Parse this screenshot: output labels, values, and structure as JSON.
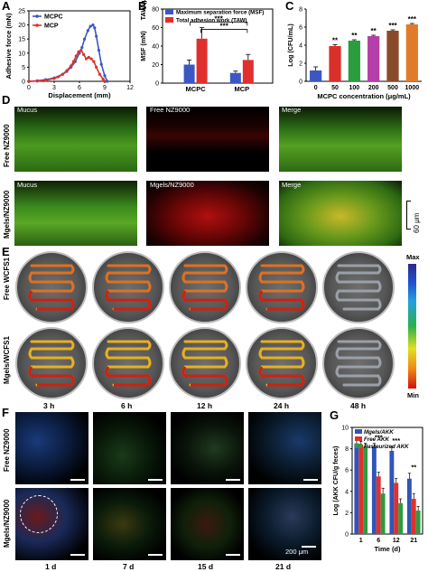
{
  "panels": {
    "A": "A",
    "B": "B",
    "C": "C",
    "D": "D",
    "E": "E",
    "F": "F",
    "G": "G"
  },
  "colors": {
    "mcpc": "#3a57c4",
    "mcp": "#e0302d",
    "msf": "#3a57c4",
    "taw": "#e0302d",
    "c_bars": [
      "#3a57c4",
      "#d9302a",
      "#2a9d3f",
      "#b43fa8",
      "#8a4a2a",
      "#e07b2a",
      "#2ab0c4"
    ],
    "mgels_akk": "#2f55b8",
    "free_akk": "#e0302d",
    "past_akk": "#2a9d3f"
  },
  "chart_data": [
    {
      "type": "line",
      "panel": "A",
      "xlabel": "Displacement (mm)",
      "ylabel": "Adhesive force (mN)",
      "xlim": [
        0,
        12
      ],
      "ylim": [
        0,
        25
      ],
      "xticks": [
        "0",
        "3",
        "6",
        "9",
        "12"
      ],
      "yticks": [
        "0",
        "5",
        "10",
        "15",
        "20",
        "25"
      ],
      "legend": "top-left",
      "series": [
        {
          "name": "MCPC",
          "x": [
            0,
            1,
            2,
            3,
            4,
            4.5,
            5,
            5.5,
            6,
            6.3,
            6.6,
            7,
            7.3,
            7.6,
            7.8,
            8,
            8.3,
            8.6,
            9,
            9.3
          ],
          "y": [
            0,
            0.2,
            0.6,
            1.2,
            2.5,
            3.5,
            5,
            7,
            10,
            12,
            15,
            18,
            19.5,
            20,
            19,
            16,
            11,
            6,
            2,
            0
          ]
        },
        {
          "name": "MCP",
          "x": [
            0,
            1,
            2,
            3,
            3.5,
            4,
            4.5,
            5,
            5.3,
            5.6,
            5.9,
            6.2,
            6.5,
            6.8,
            7.1,
            7.4,
            7.7,
            8,
            8.4,
            8.8,
            9
          ],
          "y": [
            0,
            0.1,
            0.4,
            1,
            1.6,
            2.5,
            3.8,
            5.5,
            7,
            9,
            10.5,
            11,
            9.5,
            8,
            8.5,
            8,
            7,
            5,
            2.5,
            0.8,
            0
          ]
        }
      ]
    },
    {
      "type": "bar",
      "panel": "B",
      "ylabel": "MSF (mN)",
      "ylabel2": "TAW (μJ)",
      "ylim": [
        0,
        80
      ],
      "yticks": [
        "0",
        "20",
        "40",
        "60",
        "80"
      ],
      "categories": [
        "MCPC",
        "MCP"
      ],
      "legend": "top",
      "significance": "***",
      "series": [
        {
          "name": "Maximum separation force (MSF)",
          "values": [
            20,
            11
          ],
          "errors": [
            5,
            2
          ]
        },
        {
          "name": "Total adhesion work (TAW)",
          "values": [
            48,
            25
          ],
          "errors": [
            12,
            6
          ]
        }
      ]
    },
    {
      "type": "bar",
      "panel": "C",
      "xlabel": "MCPC concentration (μg/mL)",
      "ylabel": "Log (CFU/mL)",
      "ylim": [
        0,
        8
      ],
      "yticks": [
        "0",
        "2",
        "4",
        "6",
        "8"
      ],
      "categories": [
        "0",
        "50",
        "100",
        "200",
        "500",
        "1000"
      ],
      "values": [
        1.2,
        3.9,
        4.5,
        5.0,
        5.6,
        6.3
      ],
      "errors": [
        0.4,
        0.15,
        0.1,
        0.1,
        0.1,
        0.1
      ],
      "significance": [
        "",
        "**",
        "**",
        "**",
        "***",
        "***"
      ]
    },
    {
      "type": "bar",
      "panel": "G",
      "xlabel": "Time (d)",
      "ylabel": "Log (AKK CFU/g feces)",
      "ylim": [
        0,
        10
      ],
      "yticks": [
        "0",
        "2",
        "4",
        "6",
        "8",
        "10"
      ],
      "categories": [
        "1",
        "6",
        "12",
        "21"
      ],
      "legend": "top-right",
      "series": [
        {
          "name": "Mgels/AKK",
          "values": [
            8.5,
            8.2,
            7.8,
            5.2
          ],
          "errors": [
            0.3,
            0.3,
            0.4,
            0.5
          ]
        },
        {
          "name": "Free AKK",
          "values": [
            8.4,
            5.4,
            4.8,
            3.3
          ],
          "errors": [
            0.3,
            0.4,
            0.4,
            0.5
          ]
        },
        {
          "name": "Pasteurized AKK",
          "values": [
            8.2,
            3.8,
            2.9,
            2.2
          ],
          "errors": [
            0.3,
            0.5,
            0.4,
            0.4
          ]
        }
      ],
      "significance": [
        "",
        "***",
        "***",
        "**"
      ]
    }
  ],
  "panel_d": {
    "row_labels": [
      "Free NZ9000",
      "Mgels/NZ9000"
    ],
    "col_labels_row1": [
      "Mucus",
      "Free NZ9000",
      "Merge"
    ],
    "col_labels_row2": [
      "Mucus",
      "Mgels/NZ9000",
      "Merge"
    ],
    "scale": "60 μm"
  },
  "panel_e": {
    "row_labels": [
      "Free WCFS1",
      "Mgels/WCFS1"
    ],
    "times": [
      "3 h",
      "6 h",
      "12 h",
      "24 h",
      "48 h"
    ],
    "colorbar_max": "Max",
    "colorbar_min": "Min"
  },
  "panel_f": {
    "row_labels": [
      "Free NZ9000",
      "Mgels/NZ9000"
    ],
    "times": [
      "1 d",
      "7 d",
      "15 d",
      "21 d"
    ],
    "scale": "200 μm"
  }
}
